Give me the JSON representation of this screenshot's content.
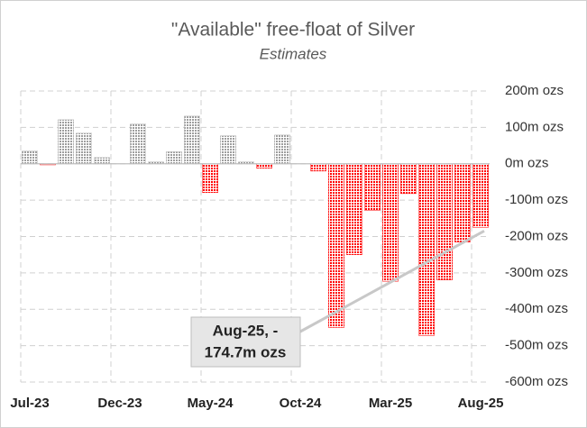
{
  "chart_data": {
    "type": "bar",
    "title": "\"Available\" free-float of Silver",
    "subtitle": "Estimates",
    "categories": [
      "Jul-23",
      null,
      null,
      null,
      null,
      "Dec-23",
      null,
      null,
      null,
      null,
      "May-24",
      null,
      null,
      null,
      null,
      "Oct-24",
      null,
      null,
      null,
      null,
      "Mar-25",
      null,
      null,
      null,
      null,
      "Aug-25"
    ],
    "values": [
      35,
      -3,
      121,
      84,
      17,
      0,
      109,
      5,
      33,
      131,
      -79,
      77,
      5,
      -12,
      79,
      0,
      -20,
      -450,
      -250,
      -128,
      -323,
      -82,
      -472,
      -319,
      -215,
      -174.7
    ],
    "positive_color": "#b4b4b4",
    "negative_color": "#ff0000",
    "ylim": [
      -600,
      200
    ],
    "yticks": [
      {
        "value": 200,
        "label": "200m ozs"
      },
      {
        "value": 100,
        "label": "100m ozs"
      },
      {
        "value": 0,
        "label": "0m ozs"
      },
      {
        "value": -100,
        "label": "-100m ozs"
      },
      {
        "value": -200,
        "label": "-200m ozs"
      },
      {
        "value": -300,
        "label": "-300m ozs"
      },
      {
        "value": -400,
        "label": "-400m ozs"
      },
      {
        "value": -500,
        "label": "-500m ozs"
      },
      {
        "value": -600,
        "label": "-600m ozs"
      }
    ],
    "grid": true,
    "annotation": {
      "lines": [
        "Aug-25, -",
        "174.7m ozs"
      ]
    }
  }
}
